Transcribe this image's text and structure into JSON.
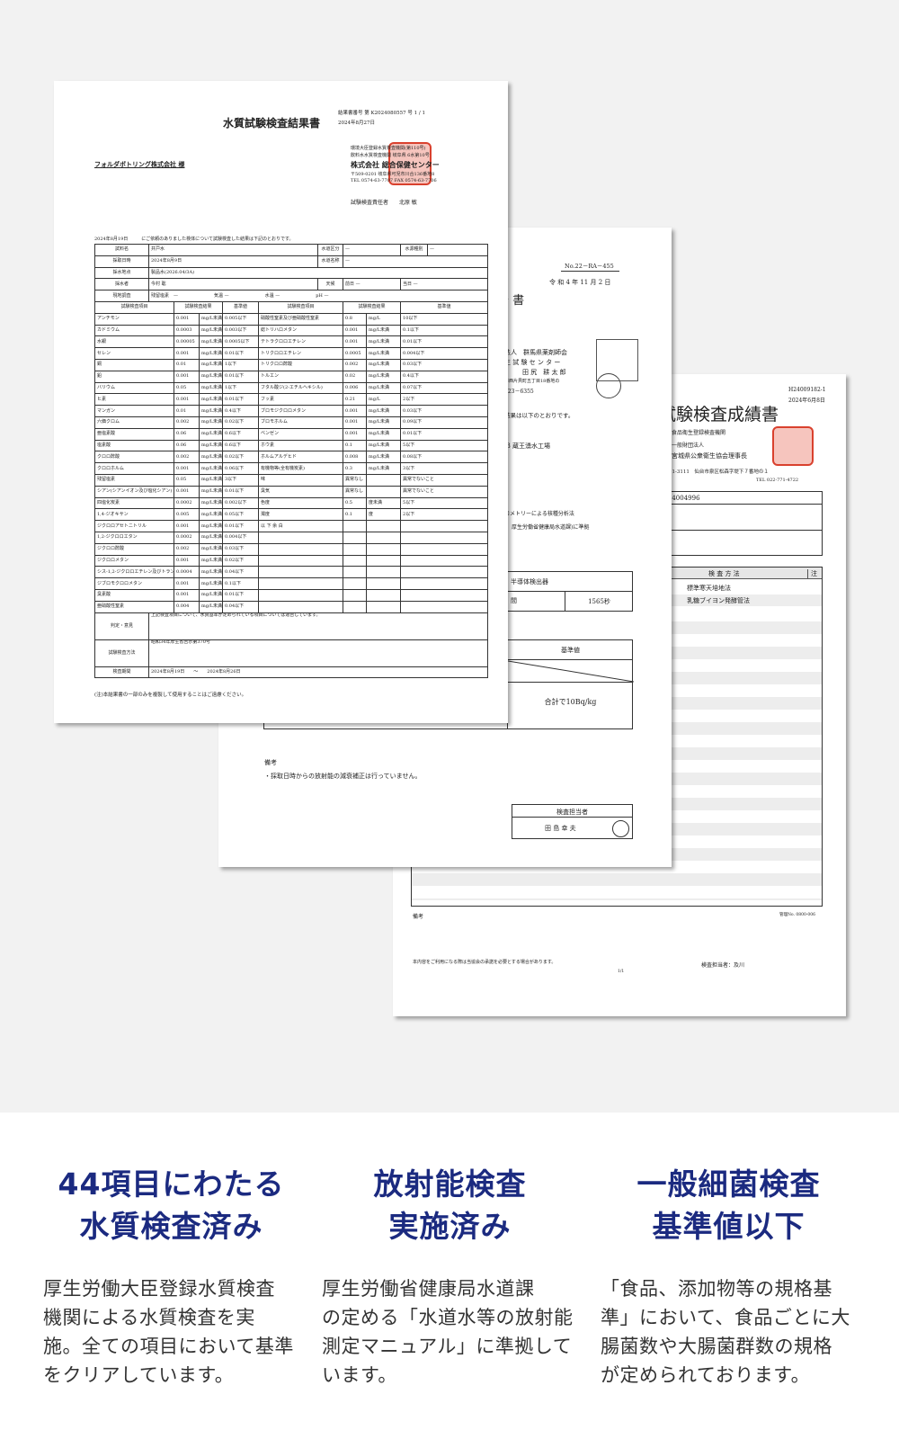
{
  "doc1": {
    "title": "水質試験検査結果書",
    "number": "結果書番号 第 K2024080557 号 1 / 1",
    "date": "2024年8月27日",
    "client": "フォルダボトリング株式会社 様",
    "lab_lines": [
      "環境大臣登録水質検査機関(第110号)",
      "飲料水水質検査機関 岐阜県 6水第10号"
    ],
    "lab_name": "株式会社 総合保健センター",
    "lab_addr": "〒509-0201 岐阜県可児市川合136番地8",
    "lab_tel": "TEL 0574-63-7707 FAX 0574-63-7706",
    "manager": "試験検査責任者　　北原 敏",
    "intro": "2024年8月19日　　　にご依頼のありました検体について試験検査した結果は下記のとおりです。",
    "info": {
      "sample_label": "試料名",
      "sample": "井戸水",
      "water_cat_label": "水道区分",
      "water_cat": "—",
      "source_label": "水源種別",
      "source": "—",
      "date_label": "採取日時",
      "date": "2024年8月9日",
      "water_name_label": "水道名称",
      "water_name": "—",
      "place_label": "採水地点",
      "place": "製品水(2026.04/3A)",
      "collector_label": "採水者",
      "collector": "今村 聡",
      "weather_label": "天候",
      "prev_label": "前日",
      "prev": "—",
      "today_label": "当日",
      "today": "—",
      "field_label": "現地調査",
      "chlorine_label": "残留塩素",
      "chlorine": "—",
      "air_label": "気温",
      "air": "—",
      "water_temp_label": "水温",
      "water_temp": "—",
      "ph_label": "pH",
      "ph": "—"
    },
    "headers": [
      "試験検査項目",
      "試験検査結果",
      "基準値",
      "試験検査項目",
      "試験検査結果",
      "基準値"
    ],
    "left_rows": [
      [
        "アンチモン",
        "0.001",
        "mg/L未満",
        "0.005以下"
      ],
      [
        "カドミウム",
        "0.0003",
        "mg/L未満",
        "0.003以下"
      ],
      [
        "水銀",
        "0.00005",
        "mg/L未満",
        "0.0005以下"
      ],
      [
        "セレン",
        "0.001",
        "mg/L未満",
        "0.01以下"
      ],
      [
        "銅",
        "0.01",
        "mg/L未満",
        "1以下"
      ],
      [
        "鉛",
        "0.001",
        "mg/L未満",
        "0.01以下"
      ],
      [
        "バリウム",
        "0.05",
        "mg/L未満",
        "1以下"
      ],
      [
        "ヒ素",
        "0.001",
        "mg/L未満",
        "0.01以下"
      ],
      [
        "マンガン",
        "0.01",
        "mg/L未満",
        "0.4以下"
      ],
      [
        "六価クロム",
        "0.002",
        "mg/L未満",
        "0.02以下"
      ],
      [
        "亜塩素酸",
        "0.06",
        "mg/L未満",
        "0.6以下"
      ],
      [
        "塩素酸",
        "0.06",
        "mg/L未満",
        "0.6以下"
      ],
      [
        "クロロ酢酸",
        "0.002",
        "mg/L未満",
        "0.02以下"
      ],
      [
        "クロロホルム",
        "0.001",
        "mg/L未満",
        "0.06以下"
      ],
      [
        "残留塩素",
        "0.05",
        "mg/L未満",
        "3以下"
      ],
      [
        "シアン(シアンイオン及び塩化シアン)",
        "0.001",
        "mg/L未満",
        "0.01以下"
      ],
      [
        "四塩化炭素",
        "0.0002",
        "mg/L未満",
        "0.002以下"
      ],
      [
        "1,4-ジオキサン",
        "0.005",
        "mg/L未満",
        "0.05以下"
      ],
      [
        "ジクロロアセトニトリル",
        "0.001",
        "mg/L未満",
        "0.01以下"
      ],
      [
        "1,2-ジクロロエタン",
        "0.0002",
        "mg/L未満",
        "0.004以下"
      ],
      [
        "ジクロロ酢酸",
        "0.002",
        "mg/L未満",
        "0.03以下"
      ],
      [
        "ジクロロメタン",
        "0.001",
        "mg/L未満",
        "0.02以下"
      ],
      [
        "シス-1,2-ジクロロエチレン及びトランス-1,2-ジクロロエチレン",
        "0.0004",
        "mg/L未満",
        "0.04以下"
      ],
      [
        "ジブロモクロロメタン",
        "0.001",
        "mg/L未満",
        "0.1以下"
      ],
      [
        "臭素酸",
        "0.001",
        "mg/L未満",
        "0.01以下"
      ],
      [
        "亜硝酸性窒素",
        "0.004",
        "mg/L未満",
        "0.04以下"
      ]
    ],
    "right_rows": [
      [
        "硝酸性窒素及び亜硝酸性窒素",
        "0.8",
        "mg/L",
        "10以下"
      ],
      [
        "総トリハロメタン",
        "0.001",
        "mg/L未満",
        "0.1以下"
      ],
      [
        "テトラクロロエチレン",
        "0.001",
        "mg/L未満",
        "0.01以下"
      ],
      [
        "トリクロロエチレン",
        "0.0005",
        "mg/L未満",
        "0.004以下"
      ],
      [
        "トリクロロ酢酸",
        "0.002",
        "mg/L未満",
        "0.03以下"
      ],
      [
        "トルエン",
        "0.02",
        "mg/L未満",
        "0.4以下"
      ],
      [
        "フタル酸ジ(2-エチルヘキシル)",
        "0.006",
        "mg/L未満",
        "0.07以下"
      ],
      [
        "フッ素",
        "0.21",
        "mg/L",
        "2以下"
      ],
      [
        "ブロモジクロロメタン",
        "0.001",
        "mg/L未満",
        "0.03以下"
      ],
      [
        "ブロモホルム",
        "0.001",
        "mg/L未満",
        "0.09以下"
      ],
      [
        "ベンゼン",
        "0.001",
        "mg/L未満",
        "0.01以下"
      ],
      [
        "ホウ素",
        "0.1",
        "mg/L未満",
        "5以下"
      ],
      [
        "ホルムアルデヒド",
        "0.008",
        "mg/L未満",
        "0.08以下"
      ],
      [
        "有機物等(全有機炭素)",
        "0.3",
        "mg/L未満",
        "3以下"
      ],
      [
        "味",
        "異常なし",
        "",
        "異常でないこと"
      ],
      [
        "臭気",
        "異常なし",
        "",
        "異常でないこと"
      ],
      [
        "色度",
        "0.5",
        "度未満",
        "5以下"
      ],
      [
        "濁度",
        "0.1",
        "度",
        "2以下"
      ],
      [
        "以 下 余 白",
        "",
        "",
        ""
      ]
    ],
    "judgement_label": "判定・意見",
    "judgement": "上記検査項目について、水質基準が定められている項目については適合しています。",
    "method_label": "試験検査方法",
    "method": "昭和34年厚生省告示第370号",
    "period_label": "検査期間",
    "period": "2024年8月19日　　～　　2024年8月26日",
    "note": "(注)本結果書の一部のみを複製して使用することはご遠慮ください。"
  },
  "doc2": {
    "number": "No.22－RA－455",
    "date": "令 和 4 年 11 月 2 日",
    "title_fragment": "告 書",
    "lab_lines": [
      "法人　群馬県薬剤師会",
      "生 試 験 セ ン タ ー",
      "田 尻　耕 太 郎",
      "市西片貝町五丁目18番地の",
      "223－6355"
    ],
    "result_intro": "結果は以下のとおりです。",
    "sample": "-3  蔵王湧水工場",
    "method_lines": [
      "ロメトリーによる核種分析法",
      "厚生労働省健康局水道課)に準拠"
    ],
    "detector": "半導体検出器",
    "time_label": "間",
    "time": "1565秒",
    "standard_label": "基準値",
    "standard": "合計で10Bq/kg",
    "remarks_label": "備考",
    "remarks": "・採取日時からの放射能の減衰補正は行っていません。",
    "inspector_label": "検査担当者",
    "inspector": "田 島 幸 夫"
  },
  "doc3": {
    "number": "H24009182-1",
    "date": "2024年6月8日",
    "title": "試験検査成績書",
    "lab_lines": [
      "食品衛生登録検査機関",
      "一般財団法人",
      "宮城県公衆衛生協会理事長"
    ],
    "address": "〒981-3111　仙台市泉区松森字堤下７番地の１",
    "tel": "TEL 022-771-4722",
    "sample_id": "U24004996",
    "method_header": "検 査 方 法",
    "note_header": "注",
    "methods": [
      "標準寒天培地法",
      "乳糖ブイヨン発酵管法"
    ],
    "remarks_label": "備考",
    "control_no": "管理No. 0800-006",
    "footer_note": "本内容をご利用になる際は当協会の承諾を必要とする場合があります。",
    "page": "1/1",
    "inspector": "検査担当者：及川"
  },
  "features": [
    {
      "heading": [
        "44項目にわたる",
        "水質検査済み"
      ],
      "body": [
        "厚生労働大臣登録水質検査",
        "機関による水質検査を実",
        "施。全ての項目において基準",
        "をクリアしています。"
      ]
    },
    {
      "heading": [
        "放射能検査",
        "実施済み"
      ],
      "body": [
        "厚生労働省健康局水道課",
        "の定める「水道水等の放射能",
        "測定マニュアル」に準拠して",
        "います。"
      ]
    },
    {
      "heading": [
        "一般細菌検査",
        "基準値以下"
      ],
      "body": [
        "「食品、添加物等の規格基",
        "準」において、食品ごとに大",
        "腸菌数や大腸菌群数の規格",
        "が定められております。"
      ]
    }
  ],
  "colors": {
    "heading": "#1b2a80",
    "background_top": "#f2f2f2",
    "stamp": "#d9412e"
  }
}
